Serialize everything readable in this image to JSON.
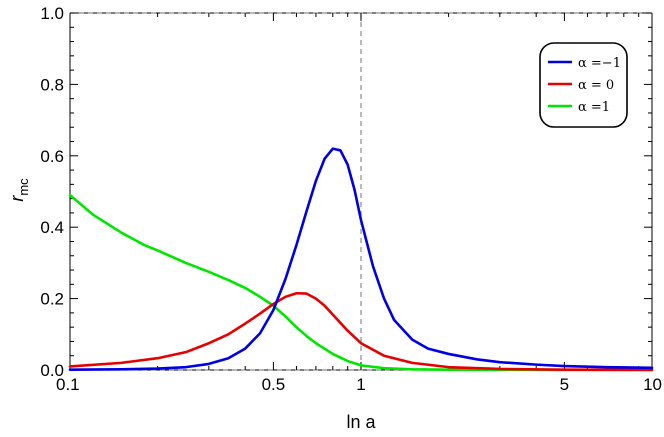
{
  "chart_data": {
    "type": "line",
    "xlabel": "ln a",
    "ylabel": "r",
    "ylabel_sub": "mc",
    "x_scale": "log",
    "xlim": [
      0.1,
      10
    ],
    "ylim": [
      0,
      1.0
    ],
    "x_ticks": [
      {
        "value": 0.1,
        "label": "0.1"
      },
      {
        "value": 0.5,
        "label": "0.5"
      },
      {
        "value": 1,
        "label": "1"
      },
      {
        "value": 5,
        "label": "5"
      },
      {
        "value": 10,
        "label": "10"
      }
    ],
    "y_ticks": [
      {
        "value": 0.0,
        "label": "0.0"
      },
      {
        "value": 0.2,
        "label": "0.2"
      },
      {
        "value": 0.4,
        "label": "0.4"
      },
      {
        "value": 0.6,
        "label": "0.6"
      },
      {
        "value": 0.8,
        "label": "0.8"
      },
      {
        "value": 1.0,
        "label": "1.0"
      }
    ],
    "reference_lines": [
      {
        "axis": "x",
        "value": 1,
        "style": "dashed"
      },
      {
        "axis": "y",
        "value": 1.0,
        "style": "dashed"
      },
      {
        "axis": "y",
        "value": 0.0,
        "style": "dashed"
      }
    ],
    "legend_position": "top-right",
    "grid": false,
    "series": [
      {
        "name": "α =−1",
        "color": "#0000e6",
        "points": [
          [
            0.1,
            0.001
          ],
          [
            0.15,
            0.002
          ],
          [
            0.2,
            0.004
          ],
          [
            0.25,
            0.008
          ],
          [
            0.3,
            0.017
          ],
          [
            0.35,
            0.033
          ],
          [
            0.4,
            0.06
          ],
          [
            0.45,
            0.103
          ],
          [
            0.5,
            0.168
          ],
          [
            0.55,
            0.255
          ],
          [
            0.6,
            0.35
          ],
          [
            0.65,
            0.445
          ],
          [
            0.7,
            0.53
          ],
          [
            0.75,
            0.592
          ],
          [
            0.8,
            0.62
          ],
          [
            0.85,
            0.615
          ],
          [
            0.9,
            0.575
          ],
          [
            0.95,
            0.505
          ],
          [
            1.0,
            0.42
          ],
          [
            1.1,
            0.29
          ],
          [
            1.2,
            0.2
          ],
          [
            1.3,
            0.14
          ],
          [
            1.5,
            0.085
          ],
          [
            1.7,
            0.06
          ],
          [
            2.0,
            0.045
          ],
          [
            2.5,
            0.03
          ],
          [
            3,
            0.022
          ],
          [
            4,
            0.015
          ],
          [
            5,
            0.011
          ],
          [
            7,
            0.008
          ],
          [
            10,
            0.006
          ]
        ]
      },
      {
        "name": "α = 0",
        "color": "#e60000",
        "points": [
          [
            0.1,
            0.01
          ],
          [
            0.15,
            0.02
          ],
          [
            0.2,
            0.033
          ],
          [
            0.25,
            0.05
          ],
          [
            0.3,
            0.075
          ],
          [
            0.35,
            0.1
          ],
          [
            0.4,
            0.13
          ],
          [
            0.45,
            0.158
          ],
          [
            0.5,
            0.185
          ],
          [
            0.55,
            0.205
          ],
          [
            0.6,
            0.215
          ],
          [
            0.65,
            0.214
          ],
          [
            0.7,
            0.2
          ],
          [
            0.75,
            0.18
          ],
          [
            0.8,
            0.155
          ],
          [
            0.9,
            0.11
          ],
          [
            1.0,
            0.075
          ],
          [
            1.2,
            0.04
          ],
          [
            1.5,
            0.02
          ],
          [
            2.0,
            0.008
          ],
          [
            3,
            0.003
          ],
          [
            5,
            0.001
          ],
          [
            10,
            0.0005
          ]
        ]
      },
      {
        "name": "α =1",
        "color": "#00e600",
        "points": [
          [
            0.1,
            0.49
          ],
          [
            0.12,
            0.435
          ],
          [
            0.15,
            0.385
          ],
          [
            0.18,
            0.35
          ],
          [
            0.2,
            0.335
          ],
          [
            0.25,
            0.3
          ],
          [
            0.3,
            0.275
          ],
          [
            0.35,
            0.252
          ],
          [
            0.4,
            0.23
          ],
          [
            0.45,
            0.205
          ],
          [
            0.5,
            0.18
          ],
          [
            0.55,
            0.15
          ],
          [
            0.6,
            0.12
          ],
          [
            0.65,
            0.095
          ],
          [
            0.7,
            0.075
          ],
          [
            0.8,
            0.045
          ],
          [
            0.9,
            0.025
          ],
          [
            1.0,
            0.013
          ],
          [
            1.2,
            0.005
          ],
          [
            1.5,
            0.002
          ],
          [
            2.0,
            0.001
          ],
          [
            3,
            0.0005
          ],
          [
            10,
            0.0001
          ]
        ]
      }
    ]
  }
}
